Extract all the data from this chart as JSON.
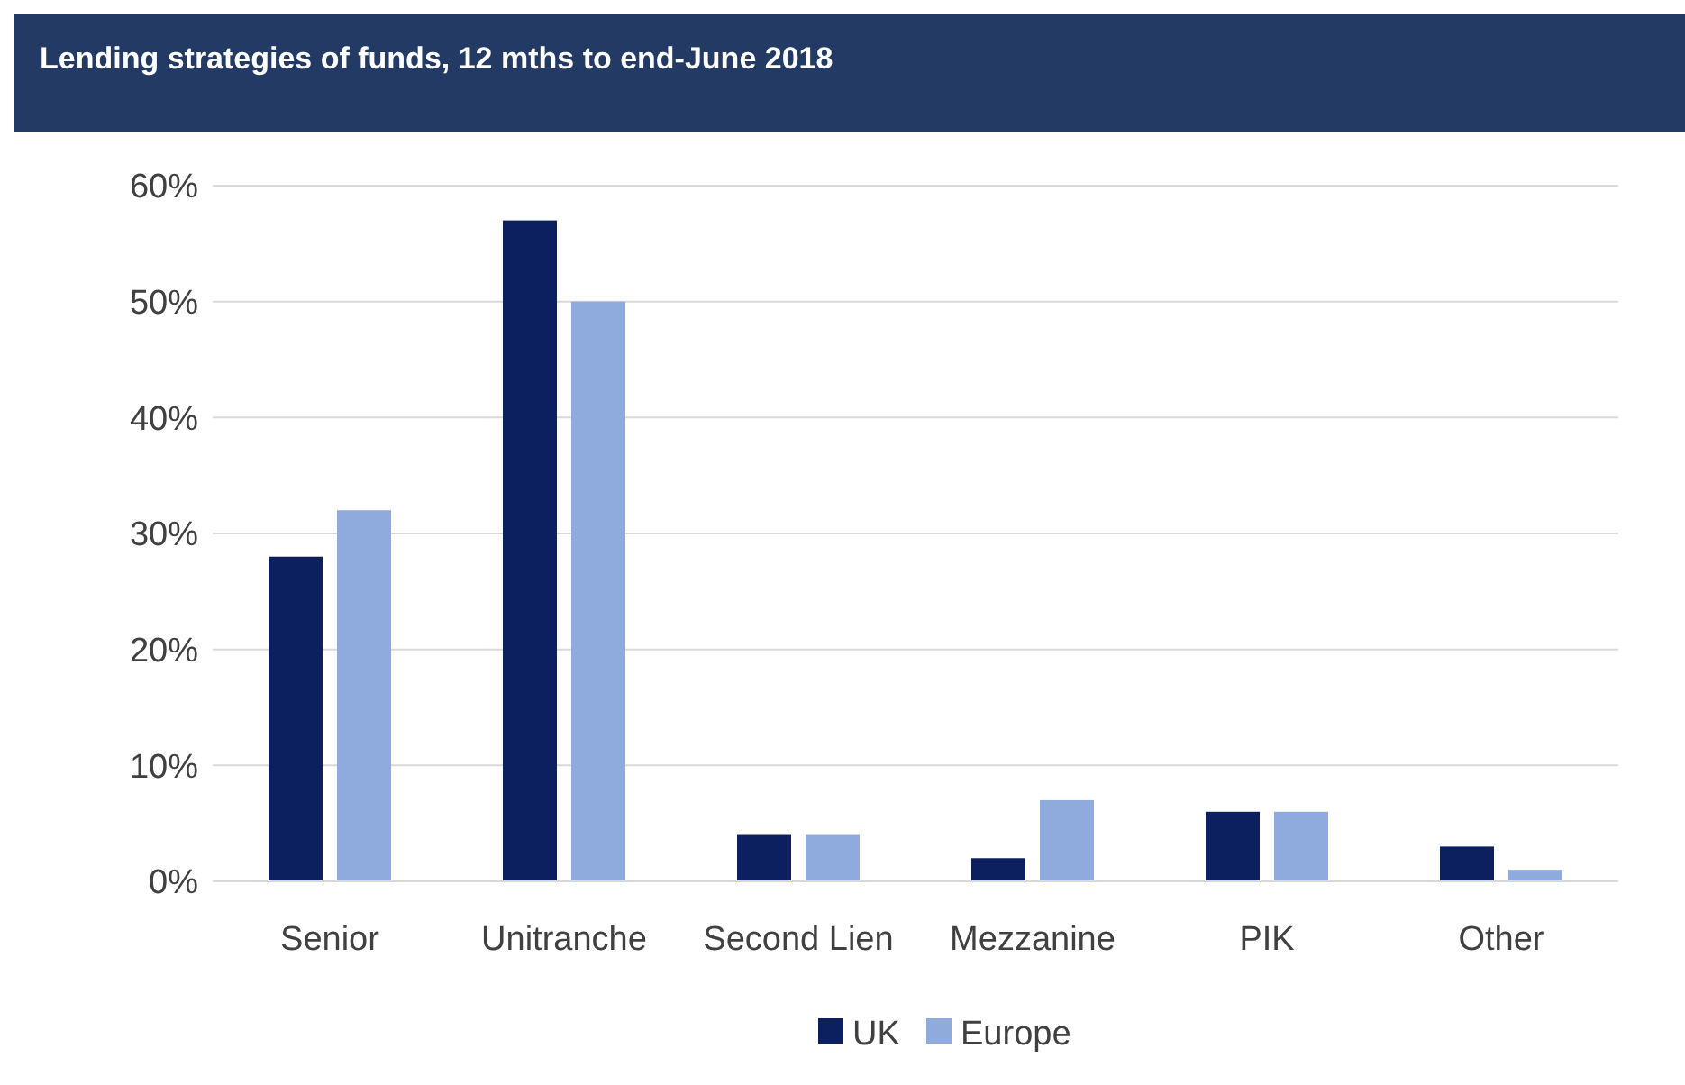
{
  "chart_data": {
    "type": "bar",
    "title": "Lending strategies of funds, 12 mths to end-June 2018",
    "categories": [
      "Senior",
      "Unitranche",
      "Second Lien",
      "Mezzanine",
      "PIK",
      "Other"
    ],
    "series": [
      {
        "name": "UK",
        "color": "#0c2060",
        "values": [
          28,
          57,
          4,
          2,
          6,
          3
        ]
      },
      {
        "name": "Europe",
        "color": "#8faadc",
        "values": [
          32,
          50,
          4,
          7,
          6,
          1
        ]
      }
    ],
    "ylim": [
      0,
      60
    ],
    "yticks": [
      {
        "value": 0,
        "label": "0%"
      },
      {
        "value": 10,
        "label": "10%"
      },
      {
        "value": 20,
        "label": "20%"
      },
      {
        "value": 30,
        "label": "30%"
      },
      {
        "value": 40,
        "label": "40%"
      },
      {
        "value": 50,
        "label": "50%"
      },
      {
        "value": 60,
        "label": "60%"
      }
    ],
    "grid": "y",
    "legend": "bottom"
  }
}
